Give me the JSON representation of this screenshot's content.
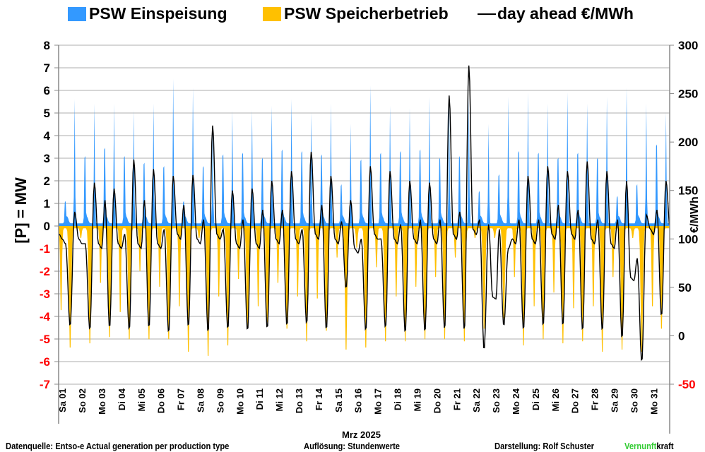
{
  "legend": {
    "einspeisung": "PSW Einspeisung",
    "speicher": "PSW Speicherbetrieb",
    "price": "day ahead €/MWh"
  },
  "footer": {
    "source": "Datenquelle: Entso-e  Actual generation per production type",
    "resolution": "Auflösung: Stundenwerte",
    "author": "Darstellung:  Rolf Schuster",
    "brand_green": "Vernunft",
    "brand_black": "kraft"
  },
  "colors": {
    "einspeisung": "#3399ff",
    "speicher": "#ffc000",
    "price": "#000000",
    "negative_tick": "#ff0000",
    "brand": "#33cc33"
  },
  "chart_data": {
    "type": "area",
    "xlabel": "Mrz 2025",
    "ylabel": "[P]  = MW",
    "ylabel_right": "€/MWh",
    "ylim": [
      -7,
      8
    ],
    "ylim_right": [
      -50,
      300
    ],
    "yticks": [
      "8",
      "7",
      "6",
      "5",
      "4",
      "3",
      "2",
      "1",
      "0",
      "-1",
      "-2",
      "-3",
      "-4",
      "-5",
      "-6",
      "-7"
    ],
    "yticks_right": [
      "300",
      "250",
      "200",
      "150",
      "100",
      "50",
      "0",
      "-50"
    ],
    "grid": true,
    "legend_position": "top",
    "categories": [
      "Sa 01",
      "So 02",
      "Mo 03",
      "Di 04",
      "Mi 05",
      "Do 06",
      "Fr 07",
      "Sa 08",
      "So 09",
      "Mo 10",
      "Di 11",
      "Mi 12",
      "Do 13",
      "Fr 14",
      "Sa 15",
      "So 16",
      "Mo 17",
      "Di 18",
      "Mi 19",
      "Do 20",
      "Fr 21",
      "Sa 22",
      "So 23",
      "Mo 24",
      "Di 25",
      "Mi 26",
      "Do 27",
      "Fr 28",
      "Sa 29",
      "So 30",
      "Mo 31"
    ],
    "resolution": "hourly (daily key values)",
    "series": [
      {
        "name": "PSW Einspeisung",
        "unit": "MW",
        "morning_peak": [
          1.2,
          3.9,
          4.4,
          3.9,
          3.5,
          3.3,
          1.2,
          3.3,
          4.0,
          4.1,
          3.8,
          4.3,
          4.2,
          4.0,
          2.2,
          3.7,
          4.1,
          4.2,
          4.3,
          3.8,
          3.9,
          1.8,
          2.8,
          4.2,
          4.1,
          3.8,
          4.1,
          3.8,
          1.5,
          2.2,
          4.6
        ],
        "evening_peak": [
          5.5,
          5.3,
          5.3,
          5.0,
          5.3,
          6.4,
          6.0,
          4.2,
          5.0,
          5.0,
          5.2,
          5.5,
          4.9,
          5.3,
          4.4,
          6.1,
          5.2,
          5.1,
          5.6,
          5.4,
          5.6,
          4.4,
          5.6,
          5.8,
          5.3,
          5.8,
          5.3,
          5.6,
          6.0,
          5.3,
          4.9
        ]
      },
      {
        "name": "PSW Speicherbetrieb",
        "unit": "MW",
        "night_min": [
          -4.2,
          -0.5,
          -2.8,
          -4.3,
          -2.2,
          -3.0,
          -4.0,
          -0.5,
          -3.5,
          -2.6,
          -4.0,
          -2.8,
          -3.5,
          -3.6,
          -1.5,
          -1.0,
          -2.0,
          -3.5,
          -3.0,
          -2.5,
          -1.5,
          -0.5,
          -0.5,
          -2.5,
          -4.0,
          -3.3,
          -4.1,
          -4.0,
          -2.5,
          -0.5,
          -4.0
        ],
        "midday_min": [
          -5.7,
          -5.5,
          -5.2,
          -5.3,
          -5.3,
          -5.3,
          -5.9,
          -6.1,
          -5.6,
          -4.8,
          -4.5,
          -4.8,
          -5.4,
          -4.9,
          -5.8,
          -5.7,
          -5.4,
          -5.4,
          -5.3,
          -5.3,
          -5.4,
          -4.8,
          -4.3,
          -5.6,
          -5.3,
          -5.5,
          -5.4,
          -5.9,
          -5.8,
          -5.9,
          -4.8
        ]
      },
      {
        "name": "day ahead €/MWh",
        "unit": "€/MWh",
        "night": [
          105,
          100,
          95,
          95,
          95,
          95,
          105,
          100,
          105,
          95,
          95,
          100,
          100,
          105,
          100,
          90,
          105,
          100,
          100,
          100,
          105,
          110,
          40,
          100,
          100,
          105,
          105,
          100,
          95,
          60,
          110
        ],
        "morning_peak": [
          95,
          95,
          140,
          105,
          140,
          110,
          135,
          120,
          110,
          120,
          130,
          130,
          110,
          135,
          118,
          100,
          100,
          115,
          120,
          120,
          128,
          120,
          110,
          120,
          120,
          135,
          130,
          120,
          120,
          80,
          130
        ],
        "midday_min": [
          10,
          6,
          8,
          6,
          8,
          3,
          9,
          3,
          7,
          5,
          7,
          10,
          12,
          6,
          49,
          5,
          8,
          3,
          4,
          6,
          5,
          -15,
          10,
          6,
          10,
          10,
          5,
          5,
          -3,
          -27,
          20
        ],
        "evening_peak": [
          128,
          158,
          152,
          182,
          172,
          165,
          166,
          217,
          150,
          152,
          160,
          170,
          190,
          165,
          140,
          175,
          170,
          160,
          158,
          248,
          279,
          115,
          90,
          165,
          175,
          170,
          180,
          170,
          160,
          125,
          160
        ]
      }
    ]
  }
}
